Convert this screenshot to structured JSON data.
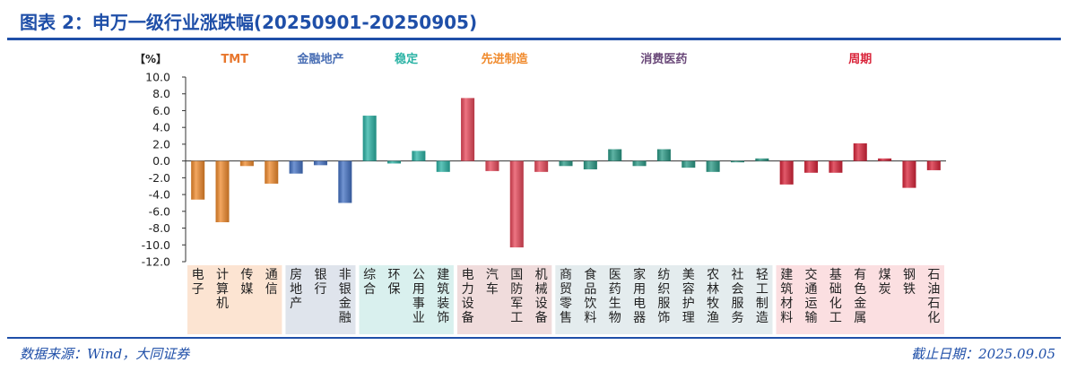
{
  "header": {
    "title": "图表 2：申万一级行业涨跌幅(20250901-20250905)"
  },
  "footer": {
    "source": "数据来源：Wind，大同证券",
    "date": "截止日期：2025.09.05"
  },
  "chart_data": {
    "type": "bar",
    "unit_label": "【%】",
    "ylim": [
      -12,
      10
    ],
    "yticks": [
      "10.0",
      "8.0",
      "6.0",
      "4.0",
      "2.0",
      "0.0",
      "-2.0",
      "-4.0",
      "-6.0",
      "-8.0",
      "-10.0",
      "-12.0"
    ],
    "groups": [
      {
        "name": "TMT",
        "color": "#f08a2c",
        "band": "#fce4d2",
        "categories": [
          "电子",
          "计算机",
          "传媒",
          "通信"
        ],
        "values": [
          -4.6,
          -7.3,
          -0.6,
          -2.7
        ]
      },
      {
        "name": "金融地产",
        "color": "#4472c4",
        "band": "#dfe4ec",
        "categories": [
          "房地产",
          "银行",
          "非银金融"
        ],
        "values": [
          -1.5,
          -0.5,
          -5.0
        ]
      },
      {
        "name": "稳定",
        "color": "#2bb3a5",
        "band": "#d9f0ee",
        "categories": [
          "综合",
          "环保",
          "公用事业",
          "建筑装饰"
        ],
        "values": [
          5.4,
          -0.3,
          1.2,
          -1.3
        ]
      },
      {
        "name": "先进制造",
        "color": "#e8485a",
        "band": "#f0dcdc",
        "categories": [
          "电力设备",
          "汽车",
          "国防军工",
          "机械设备"
        ],
        "values": [
          7.5,
          -1.2,
          -10.3,
          -1.3
        ]
      },
      {
        "name": "消费医药",
        "color": "#2a9a86",
        "band": "#e4ecee",
        "categories": [
          "商贸零售",
          "食品饮料",
          "医药生物",
          "家用电器",
          "纺织服饰",
          "美容护理",
          "农林牧渔",
          "社会服务",
          "轻工制造"
        ],
        "values": [
          -0.6,
          -1.0,
          1.4,
          -0.6,
          1.4,
          -0.8,
          -1.3,
          -0.1,
          0.3
        ]
      },
      {
        "name": "周期",
        "color": "#d9243a",
        "band": "#fbdfe1",
        "categories": [
          "建筑材料",
          "交通运输",
          "基础化工",
          "有色金属",
          "煤炭",
          "钢铁",
          "石油石化"
        ],
        "values": [
          -2.8,
          -1.4,
          -1.4,
          2.1,
          0.3,
          -3.2,
          -1.1
        ]
      }
    ],
    "group_label_colors": [
      "#e8772e",
      "#4a6fb5",
      "#2bb3a5",
      "#f08a2c",
      "#6b4a7a",
      "#d9243a"
    ]
  }
}
